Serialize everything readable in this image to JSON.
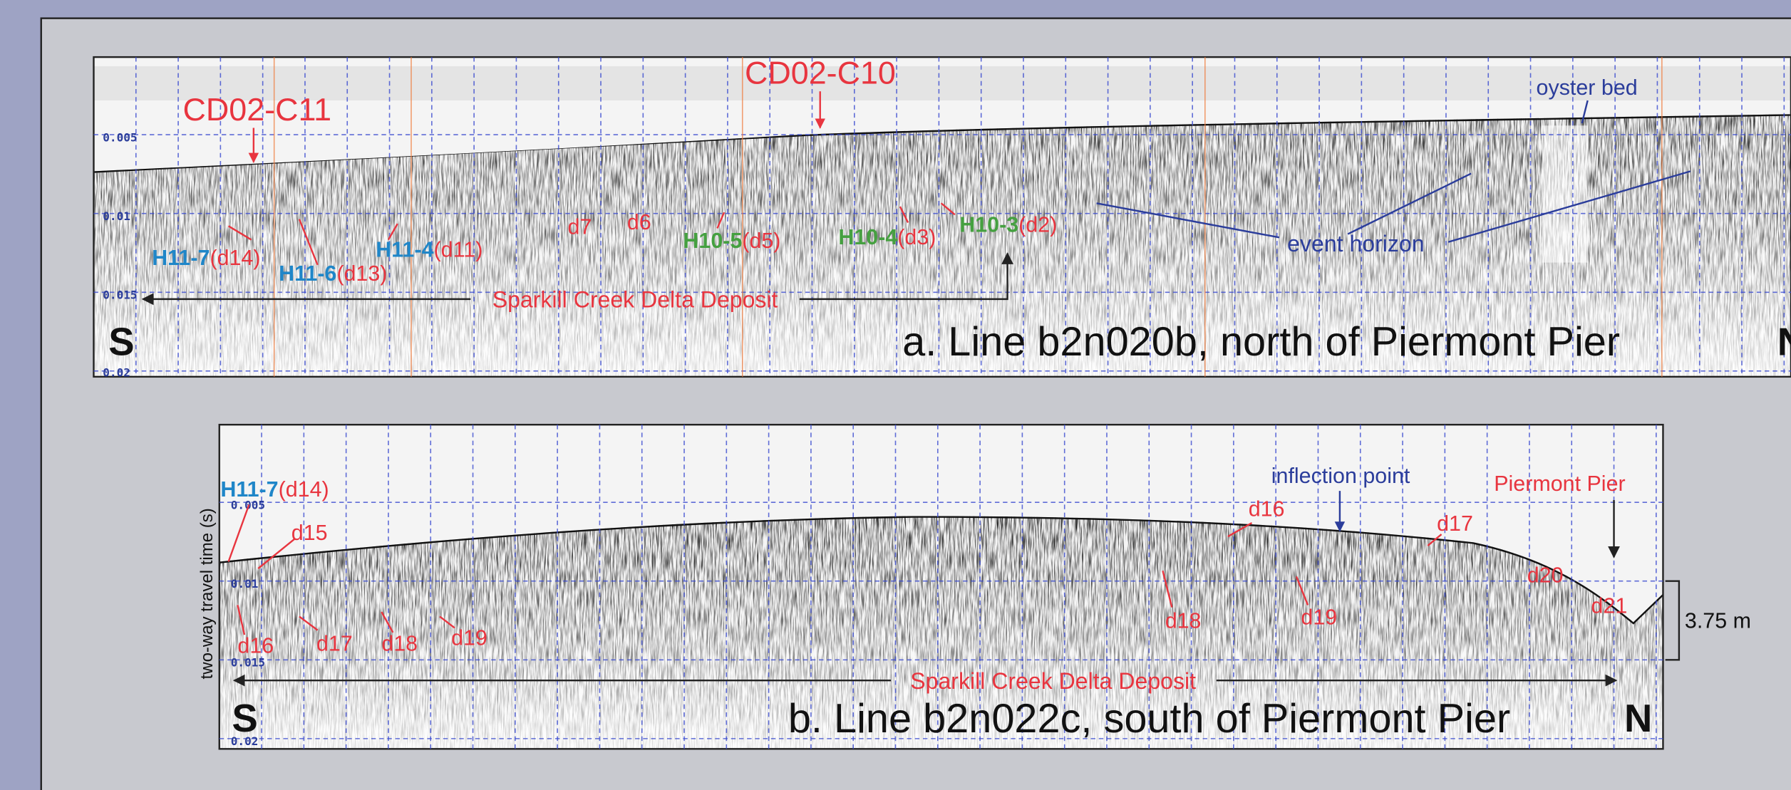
{
  "panel_a": {
    "title": "a. Line b2n020b, north of Piermont Pier",
    "direction_start": "S",
    "direction_end": "N",
    "depth_ticks": [
      "0.005",
      "0.01",
      "0.015",
      "0.02"
    ],
    "cores": [
      "CD02-C11",
      "CD02-C10"
    ],
    "oyster_bed": "oyster bed",
    "event_horizon": "event horizon",
    "deposit": "Sparkill Creek Delta Deposit",
    "reflectors": [
      "d7",
      "d6"
    ],
    "horizons": [
      {
        "name": "H10-5",
        "reflector": "(d5)"
      },
      {
        "name": "H10-4",
        "reflector": "(d3)"
      },
      {
        "name": "H10-3",
        "reflector": "(d2)"
      },
      {
        "name": "H11-7",
        "reflector": "(d14)"
      },
      {
        "name": "H11-6",
        "reflector": "(d13)"
      },
      {
        "name": "H11-4",
        "reflector": "(d11)"
      }
    ]
  },
  "panel_b": {
    "title": "b. Line b2n022c, south of Piermont Pier",
    "direction_start": "S",
    "direction_end": "N",
    "depth_ticks": [
      "0.005",
      "0.01",
      "0.015",
      "0.02"
    ],
    "axis_label": "two-way travel time (s)",
    "inflection": "inflection point",
    "pier": "Piermont Pier",
    "scale": "3.75 m",
    "deposit": "Sparkill Creek Delta Deposit",
    "reflectors": [
      "d15",
      "d16",
      "d17",
      "d18",
      "d19",
      "d16",
      "d17",
      "d18",
      "d19",
      "d20",
      "d21"
    ],
    "horizons": [
      {
        "name": "H11-7",
        "reflector": "(d14)"
      }
    ]
  }
}
